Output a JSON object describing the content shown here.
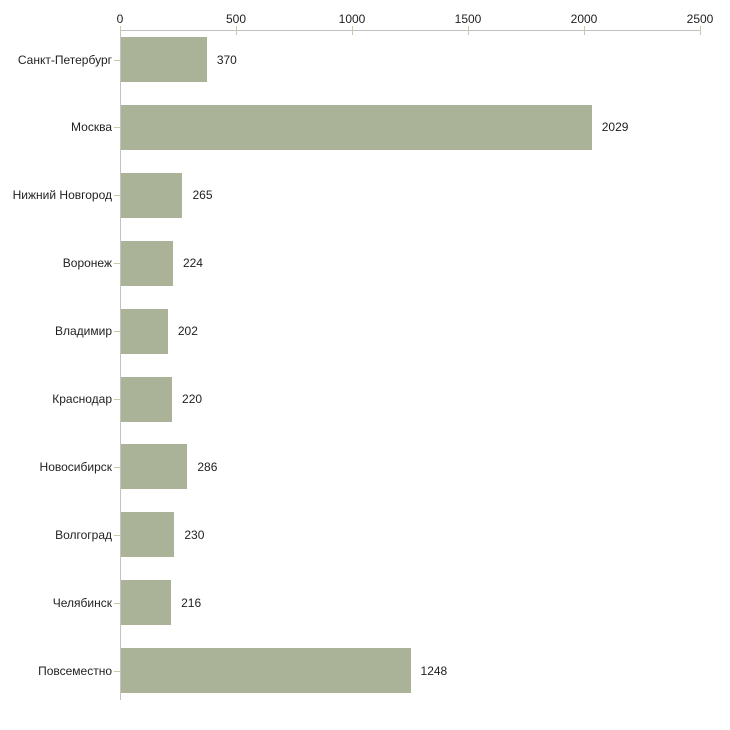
{
  "chart_data": {
    "type": "bar",
    "orientation": "horizontal",
    "title": "",
    "xlabel": "",
    "ylabel": "",
    "categories": [
      "Санкт-Петербург",
      "Москва",
      "Нижний Новгород",
      "Воронеж",
      "Владимир",
      "Краснодар",
      "Новосибирск",
      "Волгоград",
      "Челябинск",
      "Повсеместно"
    ],
    "values": [
      370,
      2029,
      265,
      224,
      202,
      220,
      286,
      230,
      216,
      1248
    ],
    "value_labels": [
      "370",
      "2029",
      "265",
      "224",
      "202",
      "220",
      "286",
      "230",
      "216",
      "1248"
    ],
    "x_ticks": [
      0,
      500,
      1000,
      1500,
      2000,
      2500
    ],
    "x_tick_labels": [
      "0",
      "500",
      "1000",
      "1500",
      "2000",
      "2500"
    ],
    "xlim": [
      0,
      2500
    ],
    "axis_position": "top",
    "grid": false,
    "legend": "none",
    "colors": {
      "bar": "#aab298",
      "axis_line": "#c2c2c2",
      "tick_mark": "#c6cba6",
      "text": "#1f1f1f",
      "background": "#ffffff"
    }
  }
}
